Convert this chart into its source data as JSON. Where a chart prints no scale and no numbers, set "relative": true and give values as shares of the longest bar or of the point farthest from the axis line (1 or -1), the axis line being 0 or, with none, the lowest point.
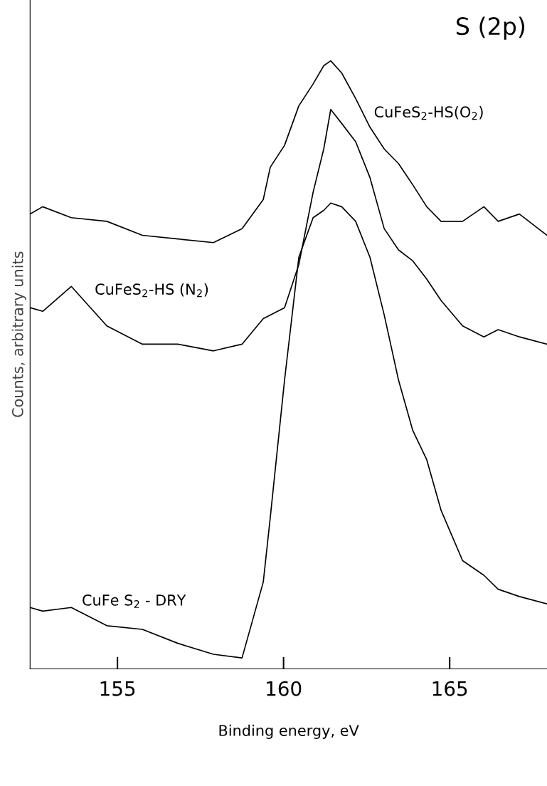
{
  "chart_data": {
    "type": "line",
    "relative": true,
    "title": "S (2p)",
    "xlabel": "Binding energy, eV",
    "ylabel": "Counts, arbitrary units",
    "x": [
      152.37,
      152.75,
      153.61,
      154.68,
      155.75,
      156.82,
      157.89,
      158.75,
      159.39,
      159.6,
      160.03,
      160.46,
      160.89,
      161.21,
      161.42,
      161.75,
      162.17,
      162.6,
      163.03,
      163.46,
      163.89,
      164.31,
      164.74,
      165.39,
      166.03,
      166.46,
      167.1,
      167.93
    ],
    "xlim": [
      152.37,
      167.93
    ],
    "xticks": [
      155,
      160,
      165
    ],
    "grid": false,
    "legend": false,
    "marker": "none",
    "line_style": "solid",
    "series": [
      {
        "name": "CuFeS$_{2}$-HS(O$_{2}$)",
        "color": "#000000",
        "values": [
          0.748,
          0.76,
          0.742,
          0.736,
          0.713,
          0.707,
          0.701,
          0.724,
          0.772,
          0.825,
          0.861,
          0.926,
          0.962,
          0.992,
          1.0,
          0.98,
          0.938,
          0.891,
          0.855,
          0.831,
          0.796,
          0.76,
          0.736,
          0.736,
          0.76,
          0.736,
          0.748,
          0.713
        ]
      },
      {
        "name": "CuFeS$_{2}$-HS (N$_{2}$)",
        "color": "#000000",
        "values": [
          0.594,
          0.588,
          0.629,
          0.564,
          0.534,
          0.534,
          0.523,
          0.534,
          0.576,
          0.582,
          0.594,
          0.665,
          0.784,
          0.855,
          0.92,
          0.897,
          0.867,
          0.808,
          0.724,
          0.689,
          0.671,
          0.641,
          0.606,
          0.564,
          0.546,
          0.558,
          0.546,
          0.534
        ]
      },
      {
        "name": "CuFe S$_{2}$ - DRY",
        "color": "#000000",
        "values": [
          0.101,
          0.095,
          0.101,
          0.071,
          0.065,
          0.042,
          0.024,
          0.018,
          0.143,
          0.249,
          0.475,
          0.677,
          0.742,
          0.754,
          0.766,
          0.76,
          0.736,
          0.677,
          0.582,
          0.475,
          0.392,
          0.344,
          0.261,
          0.178,
          0.154,
          0.131,
          0.119,
          0.107
        ]
      }
    ]
  }
}
